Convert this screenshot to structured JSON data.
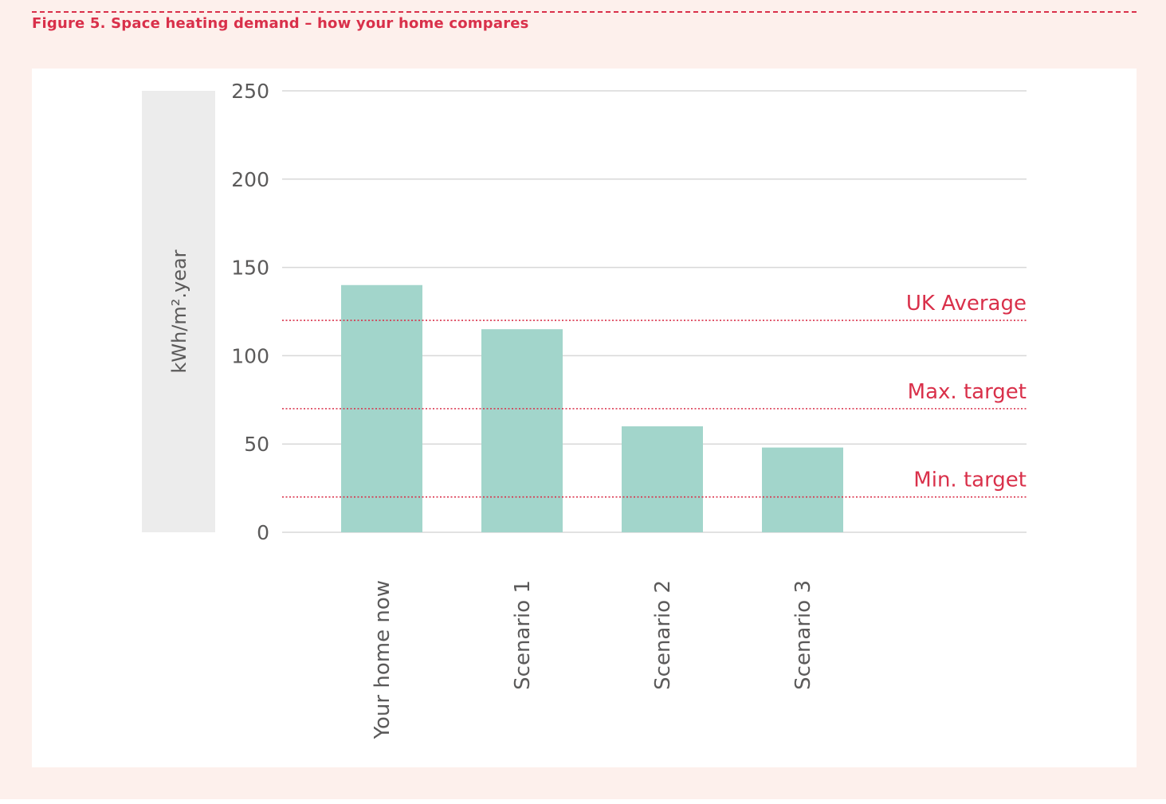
{
  "figure": {
    "caption": "Figure 5. Space heating demand – how your home compares"
  },
  "colors": {
    "background": "#fdf0ec",
    "accent": "#d9304a",
    "bar": "#a2d5cb",
    "grid": "#d8d8d8",
    "axis_text": "#5b5a5a",
    "ylabel_box": "#ececec"
  },
  "chart_data": {
    "type": "bar",
    "ylabel": "kWh/m².year",
    "xlabel": "",
    "ylim": [
      0,
      250
    ],
    "yticks": [
      "0",
      "50",
      "100",
      "150",
      "200",
      "250"
    ],
    "grid": true,
    "categories": [
      "Your home now",
      "Scenario 1",
      "Scenario 2",
      "Scenario 3"
    ],
    "values": [
      140,
      115,
      60,
      48
    ],
    "reference_lines": [
      {
        "label": "UK Average",
        "value": 120
      },
      {
        "label": "Max. target",
        "value": 70
      },
      {
        "label": "Min. target",
        "value": 20
      }
    ]
  }
}
